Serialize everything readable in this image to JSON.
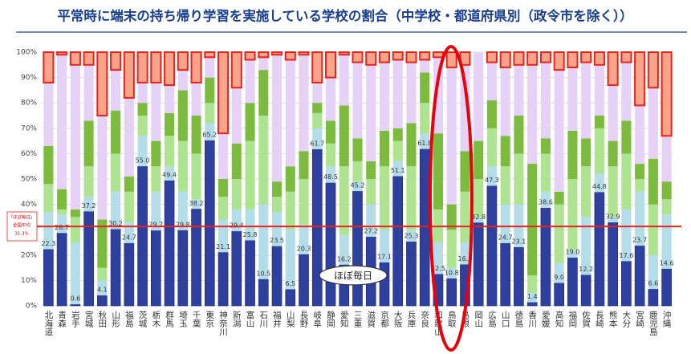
{
  "chart_data": {
    "type": "stacked_bar",
    "title": "平常時に端末の持ち帰り学習を実施している学校の割合（中学校・都道府県別（政令市を除く））",
    "categories": [
      "北海道",
      "青森",
      "岩手",
      "宮城",
      "秋田",
      "山形",
      "福島",
      "茨城",
      "栃木",
      "群馬",
      "埼玉",
      "千葉",
      "東京",
      "神奈川",
      "新潟",
      "富山",
      "石川",
      "福井",
      "山梨",
      "長野",
      "岐阜",
      "静岡",
      "愛知",
      "三重",
      "滋賀",
      "京都",
      "大阪",
      "兵庫",
      "奈良",
      "和歌山",
      "鳥取",
      "島根",
      "岡山",
      "広島",
      "山口",
      "徳島",
      "香川",
      "愛媛",
      "高知",
      "福岡",
      "佐賀",
      "長崎",
      "熊本",
      "大分",
      "宮崎",
      "鹿児島",
      "沖縄"
    ],
    "series": [
      {
        "name": "ほぼ毎日",
        "color": "#2f3f9e",
        "values": [
          22.3,
          28.7,
          0.6,
          37.2,
          4.1,
          30.2,
          24.7,
          55.0,
          29.7,
          49.4,
          29.8,
          38.2,
          65.2,
          21.1,
          29.4,
          25.8,
          10.5,
          23.5,
          6.5,
          20.3,
          61.7,
          48.5,
          16.2,
          45.2,
          27.2,
          17.1,
          51.1,
          25.3,
          61.8,
          12.5,
          10.8,
          16.3,
          32.8,
          47.3,
          24.7,
          23.1,
          1.4,
          38.6,
          9.0,
          19.0,
          12.2,
          44.8,
          32.9,
          17.6,
          23.7,
          6.6,
          14.6
        ],
        "value_labels": [
          "22.3",
          "28.7",
          "0.6",
          "37.2",
          "4.1",
          "30.2",
          "24.7",
          "55.0",
          "29.7",
          "49.4",
          "29.8",
          "38.2",
          "65.2",
          "21.1",
          "29.4",
          "25.8",
          "10.5",
          "23.5",
          "6.5",
          "20.3",
          "61.7",
          "48.5",
          "16.2",
          "45.2",
          "27.2",
          "17.1",
          "51.1",
          "25.3",
          "61.8",
          "12.5",
          "10.8",
          "16.3",
          "32.8",
          "47.3",
          "24.7",
          "23.1",
          "1.4",
          "38.6",
          "9.0",
          "19.0",
          "12.2",
          "44.8",
          "32.9",
          "17.6",
          "23.7",
          "6.6",
          "14.6"
        ]
      },
      {
        "color": "#b5dde9",
        "values": [
          14.7,
          7.3,
          24.4,
          5.8,
          5.9,
          14.8,
          8.3,
          12,
          15.3,
          5.6,
          15.2,
          3.8,
          6.8,
          12.9,
          8.6,
          12.2,
          29.5,
          13.5,
          23.5,
          11.7,
          8.3,
          6.5,
          11.8,
          3.8,
          12.8,
          12.9,
          5.9,
          4.7,
          6.2,
          12.5,
          4.2,
          8.7,
          2.2,
          7.7,
          15.3,
          16.9,
          3.6,
          6.4,
          8,
          3,
          22.8,
          7.2,
          2.1,
          20.4,
          21.3,
          13.4,
          21.4
        ]
      },
      {
        "color": "#aee38f",
        "values": [
          11,
          2,
          10,
          12,
          5,
          15,
          12,
          8,
          10,
          12,
          20,
          18,
          8,
          9,
          12,
          27,
          35,
          6,
          15,
          18,
          6,
          9,
          27,
          8,
          10,
          25,
          8,
          25,
          12,
          13,
          15,
          20,
          15,
          15,
          15,
          20,
          7,
          15,
          23,
          28,
          20,
          18,
          20,
          22,
          5,
          20,
          6
        ]
      },
      {
        "color": "#7cbb3e",
        "values": [
          15,
          8,
          3,
          18,
          19,
          17,
          6,
          5,
          10,
          9,
          20,
          15,
          10,
          7,
          14,
          15,
          18,
          6,
          10,
          11,
          4,
          9,
          24,
          9,
          7,
          14,
          5,
          17,
          12,
          30,
          10,
          16,
          15,
          11,
          12,
          15,
          44,
          6,
          5,
          19,
          11,
          5,
          10,
          13,
          6,
          18,
          7
        ]
      },
      {
        "color": "#e6d2f6",
        "values": [
          25,
          53,
          57,
          22,
          41,
          16,
          31,
          8,
          23,
          11,
          8,
          13,
          8,
          18,
          22,
          17,
          5,
          50,
          42,
          38,
          8,
          17,
          20,
          30,
          38,
          27,
          27,
          24,
          5,
          30,
          54,
          34,
          35,
          15,
          27,
          20,
          39,
          30,
          48,
          25,
          30,
          20,
          22,
          23,
          23,
          28,
          18
        ]
      },
      {
        "color": "#f7a48a",
        "stroke": "#e8231b",
        "values": [
          12,
          1,
          5,
          5,
          25,
          7,
          18,
          12,
          12,
          13,
          7,
          12,
          2,
          32,
          14,
          3,
          2,
          1,
          3,
          1,
          12,
          10,
          1,
          4,
          5,
          4,
          3,
          4,
          3,
          2,
          6,
          5,
          0,
          4,
          6,
          5,
          5,
          4,
          7,
          6,
          4,
          5,
          13,
          4,
          21,
          14,
          33
        ]
      }
    ],
    "ylim": [
      0,
      100
    ],
    "yticks": [
      {
        "value": 0,
        "label": "0%"
      },
      {
        "value": 10,
        "label": "10%"
      },
      {
        "value": 20,
        "label": "20%"
      },
      {
        "value": 30,
        "label": "30%"
      },
      {
        "value": 40,
        "label": "40%"
      },
      {
        "value": 50,
        "label": "50%"
      },
      {
        "value": 60,
        "label": "60%"
      },
      {
        "value": 70,
        "label": "70%"
      },
      {
        "value": 80,
        "label": "80%"
      },
      {
        "value": 90,
        "label": "90%"
      },
      {
        "value": 100,
        "label": "100%"
      }
    ],
    "grid": true,
    "average": {
      "label_lines": [
        "「ほぼ毎日」",
        "全国平均"
      ],
      "value": 31.3,
      "value_label": "31.3%",
      "color": "#e8231b"
    }
  }
}
